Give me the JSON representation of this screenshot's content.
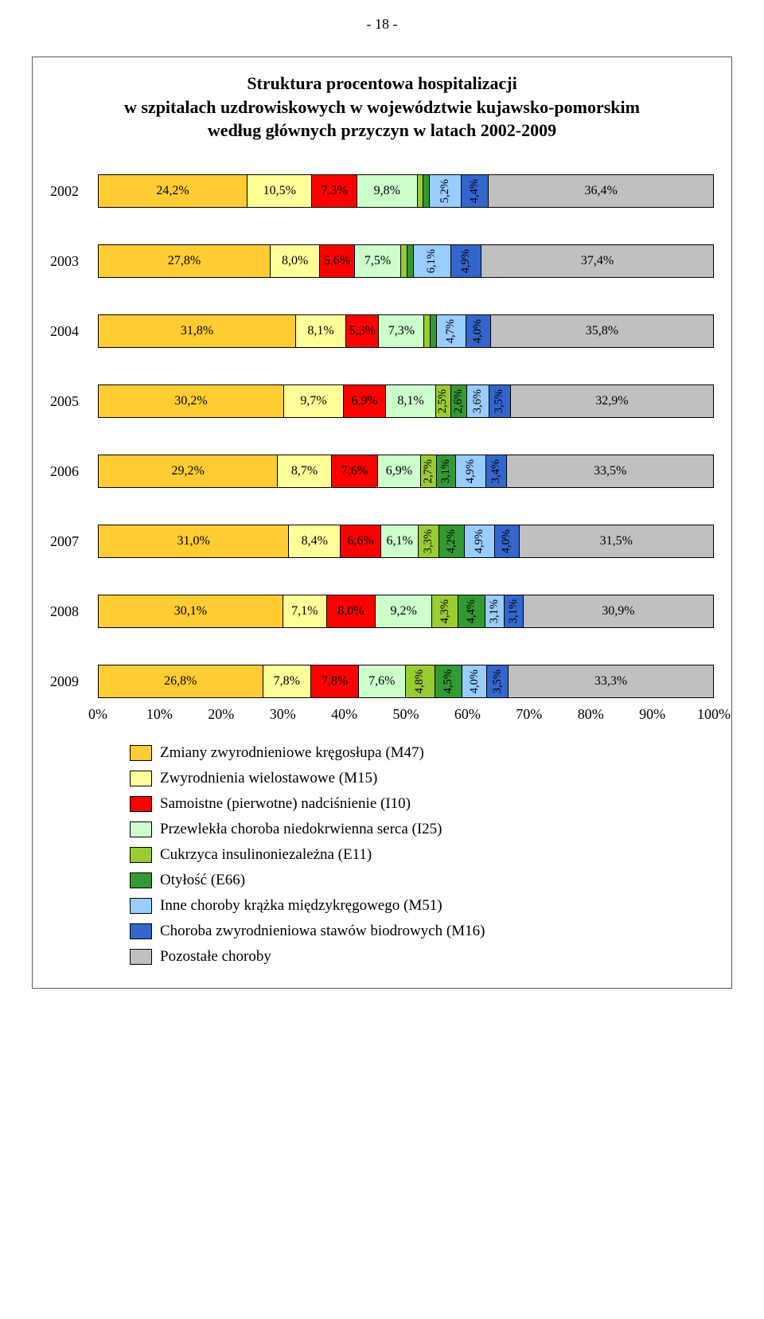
{
  "page_number_label": "- 18 -",
  "title_lines": [
    "Struktura procentowa hospitalizacji",
    "w szpitalach uzdrowiskowych w województwie kujawsko-pomorskim",
    "według głównych przyczyn w latach 2002-2009"
  ],
  "series_colors": [
    "#ffcc33",
    "#ffff99",
    "#ff0000",
    "#ccffcc",
    "#99cc33",
    "#339933",
    "#99ccff",
    "#3366cc",
    "#c0c0c0"
  ],
  "legend_labels": [
    "Zmiany zwyrodnieniowe kręgosłupa (M47)",
    "Zwyrodnienia wielostawowe (M15)",
    "Samoistne (pierwotne) nadciśnienie (I10)",
    "Przewlekła choroba niedokrwienna serca (I25)",
    "Cukrzyca insulinoniezależna (E11)",
    "Otyłość (E66)",
    "Inne choroby krążka międzykręgowego (M51)",
    "Choroba zwyrodnieniowa stawów biodrowych (M16)",
    "Pozostałe choroby"
  ],
  "x_axis_ticks": [
    "0%",
    "10%",
    "20%",
    "30%",
    "40%",
    "50%",
    "60%",
    "70%",
    "80%",
    "90%",
    "100%"
  ],
  "bars": [
    {
      "year": "2002",
      "values": [
        24.2,
        10.5,
        7.3,
        9.8,
        1.0,
        1.0,
        5.2,
        4.4,
        36.4
      ],
      "labels": [
        "24,2%",
        "10,5%",
        "7,3%",
        "9,8%",
        "",
        "",
        "5,2%",
        "4,4%",
        "36,4%"
      ],
      "vert": [
        false,
        false,
        false,
        false,
        true,
        true,
        true,
        true,
        false
      ]
    },
    {
      "year": "2003",
      "values": [
        27.8,
        8.0,
        5.6,
        7.5,
        1.0,
        1.0,
        6.1,
        4.9,
        37.4
      ],
      "labels": [
        "27,8%",
        "8,0%",
        "5,6%",
        "7,5%",
        "",
        "",
        "6,1%",
        "4,9%",
        "37,4%"
      ],
      "vert": [
        false,
        false,
        false,
        false,
        true,
        true,
        true,
        true,
        false
      ]
    },
    {
      "year": "2004",
      "values": [
        31.8,
        8.1,
        5.3,
        7.3,
        1.0,
        1.0,
        4.7,
        4.0,
        35.8
      ],
      "labels": [
        "31,8%",
        "8,1%",
        "5,3%",
        "7,3%",
        "",
        "",
        "4,7%",
        "4,0%",
        "35,8%"
      ],
      "vert": [
        false,
        false,
        false,
        false,
        true,
        true,
        true,
        true,
        false
      ]
    },
    {
      "year": "2005",
      "values": [
        30.2,
        9.7,
        6.9,
        8.1,
        2.5,
        2.6,
        3.6,
        3.5,
        32.9
      ],
      "labels": [
        "30,2%",
        "9,7%",
        "6,9%",
        "8,1%",
        "2,5%",
        "2,6%",
        "3,6%",
        "3,5%",
        "32,9%"
      ],
      "vert": [
        false,
        false,
        false,
        false,
        true,
        true,
        true,
        true,
        false
      ]
    },
    {
      "year": "2006",
      "values": [
        29.2,
        8.7,
        7.6,
        6.9,
        2.7,
        3.1,
        4.9,
        3.4,
        33.5
      ],
      "labels": [
        "29,2%",
        "8,7%",
        "7,6%",
        "6,9%",
        "2,7%",
        "3,1%",
        "4,9%",
        "3,4%",
        "33,5%"
      ],
      "vert": [
        false,
        false,
        false,
        false,
        true,
        true,
        true,
        true,
        false
      ]
    },
    {
      "year": "2007",
      "values": [
        31.0,
        8.4,
        6.6,
        6.1,
        3.3,
        4.2,
        4.9,
        4.0,
        31.5
      ],
      "labels": [
        "31,0%",
        "8,4%",
        "6,6%",
        "6,1%",
        "3,3%",
        "4,2%",
        "4,9%",
        "4,0%",
        "31,5%"
      ],
      "vert": [
        false,
        false,
        false,
        false,
        true,
        true,
        true,
        true,
        false
      ]
    },
    {
      "year": "2008",
      "values": [
        30.1,
        7.1,
        8.0,
        9.2,
        4.3,
        4.4,
        3.1,
        3.1,
        30.9
      ],
      "labels": [
        "30,1%",
        "7,1%",
        "8,0%",
        "9,2%",
        "4,3%",
        "4,4%",
        "3,1%",
        "3,1%",
        "30,9%"
      ],
      "vert": [
        false,
        false,
        false,
        false,
        true,
        true,
        true,
        true,
        false
      ]
    },
    {
      "year": "2009",
      "values": [
        26.8,
        7.8,
        7.8,
        7.6,
        4.8,
        4.5,
        4.0,
        3.5,
        33.3
      ],
      "labels": [
        "26,8%",
        "7,8%",
        "7,8%",
        "7,6%",
        "4,8%",
        "4,5%",
        "4,0%",
        "3,5%",
        "33,3%"
      ],
      "vert": [
        false,
        false,
        false,
        false,
        true,
        true,
        true,
        true,
        false
      ]
    }
  ]
}
